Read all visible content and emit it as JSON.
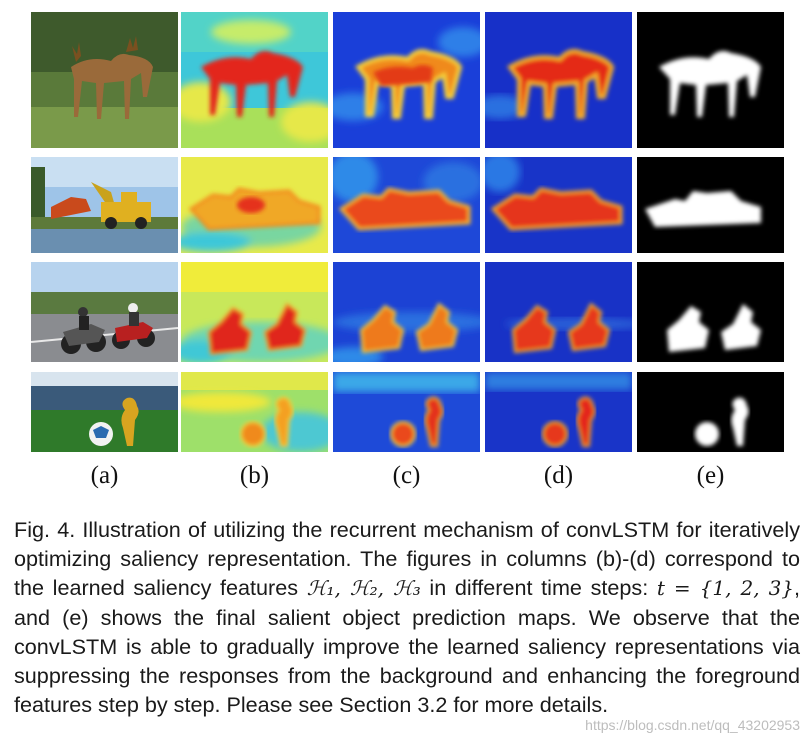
{
  "figure": {
    "column_labels": [
      "(a)",
      "(b)",
      "(c)",
      "(d)",
      "(e)"
    ],
    "rows": [
      {
        "subject": "deer"
      },
      {
        "subject": "excavators"
      },
      {
        "subject": "motorcycles"
      },
      {
        "subject": "football-and-trophy"
      }
    ]
  },
  "caption": {
    "part1": "Fig. 4. Illustration of utilizing the recurrent mechanism of convLSTM for iteratively optimizing saliency representation. The figures in columns (b)-(d) correspond to the learned saliency features ",
    "math_features": "ℋ₁, ℋ₂, ℋ₃",
    "part2": " in different time steps: ",
    "math_time": "t = {1, 2, 3}",
    "part3": ", and (e) shows the final salient object prediction maps. We observe that the convLSTM is able to gradually improve the learned saliency representations via suppressing the responses from the background and enhancing the foreground features step by step. Please see Section 3.2 for more details."
  },
  "watermark": "https://blog.csdn.net/qq_43202953"
}
